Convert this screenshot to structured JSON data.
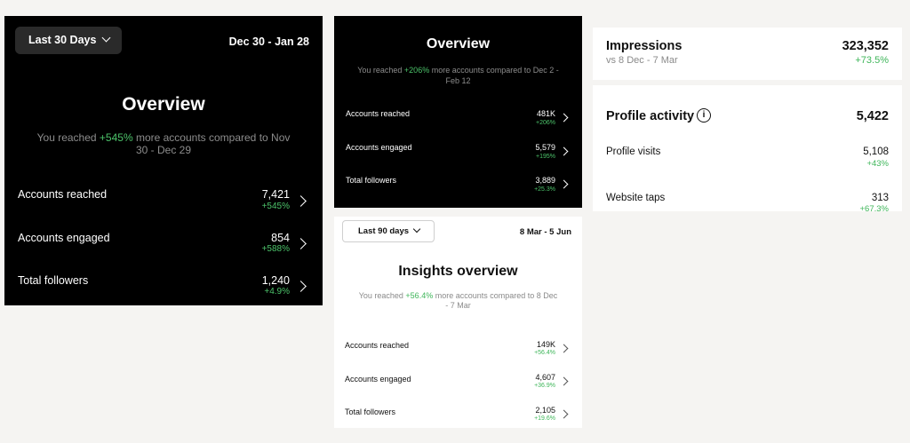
{
  "p1": {
    "range_label": "Last 30 Days",
    "date_range": "Dec 30 - Jan 28",
    "title": "Overview",
    "summary_pre": "You reached ",
    "summary_pct": "+545%",
    "summary_post": " more accounts compared to Nov 30 - Dec 29",
    "rows": [
      {
        "label": "Accounts reached",
        "value": "7,421",
        "change": "+545%"
      },
      {
        "label": "Accounts engaged",
        "value": "854",
        "change": "+588%"
      },
      {
        "label": "Total followers",
        "value": "1,240",
        "change": "+4.9%"
      }
    ]
  },
  "p2": {
    "title": "Overview",
    "summary_pre": "You reached ",
    "summary_pct": "+206%",
    "summary_post": " more accounts compared to Dec 2 - Feb 12",
    "rows": [
      {
        "label": "Accounts reached",
        "value": "481K",
        "change": "+206%"
      },
      {
        "label": "Accounts engaged",
        "value": "5,579",
        "change": "+195%"
      },
      {
        "label": "Total followers",
        "value": "3,889",
        "change": "+25.3%"
      }
    ]
  },
  "p3": {
    "range_label": "Last 90 days",
    "date_range": "8 Mar - 5 Jun",
    "title": "Insights overview",
    "summary_pre": "You reached ",
    "summary_pct": "+56.4%",
    "summary_post": " more accounts compared to 8 Dec - 7 Mar",
    "rows": [
      {
        "label": "Accounts reached",
        "value": "149K",
        "change": "+56.4%"
      },
      {
        "label": "Accounts engaged",
        "value": "4,607",
        "change": "+36.9%"
      },
      {
        "label": "Total followers",
        "value": "2,105",
        "change": "+19.6%"
      }
    ]
  },
  "p4": {
    "impressions_label": "Impressions",
    "impressions_sub": "vs 8 Dec - 7 Mar",
    "impressions_value": "323,352",
    "impressions_change": "+73.5%",
    "profile_title": "Profile activity",
    "profile_total": "5,422",
    "rows": [
      {
        "label": "Profile visits",
        "value": "5,108",
        "change": "+43%"
      },
      {
        "label": "Website taps",
        "value": "313",
        "change": "+67.3%"
      }
    ]
  },
  "icons": {
    "chevron": "chevron-right-icon",
    "dropdown": "chevron-down-icon",
    "info": "info-icon"
  }
}
